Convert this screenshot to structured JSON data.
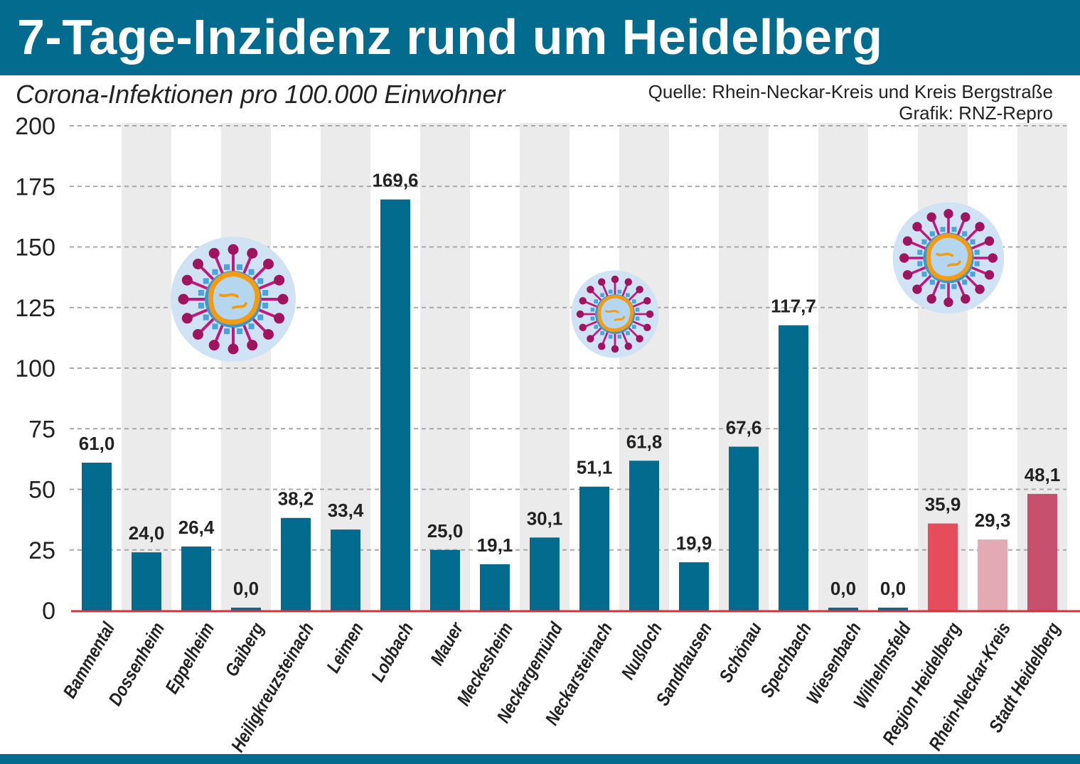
{
  "header": {
    "title": "7-Tage-Inzidenz rund um Heidelberg",
    "subtitle": "Corona-Infektionen pro 100.000 Einwohner",
    "source": "Quelle: Rhein-Neckar-Kreis und Kreis Bergstraße",
    "credit": "Grafik: RNZ-Repro"
  },
  "chart_data": {
    "type": "bar",
    "title": "7-Tage-Inzidenz rund um Heidelberg",
    "ylabel": "Corona-Infektionen pro 100.000 Einwohner",
    "xlabel": "",
    "ylim": [
      0,
      200
    ],
    "yticks": [
      0,
      25,
      50,
      75,
      100,
      125,
      150,
      175,
      200
    ],
    "grid": true,
    "categories": [
      "Bammental",
      "Dossenheim",
      "Eppelheim",
      "Gaiberg",
      "Heiligkreuzsteinach",
      "Leimen",
      "Lobbach",
      "Mauer",
      "Meckesheim",
      "Neckargemünd",
      "Neckarsteinach",
      "Nußloch",
      "Sandhausen",
      "Schönau",
      "Spechbach",
      "Wiesenbach",
      "Wilhelmsfeld",
      "Region Heidelberg",
      "Rhein-Neckar-Kreis",
      "Stadt Heidelberg"
    ],
    "values": [
      61.0,
      24.0,
      26.4,
      0.0,
      38.2,
      33.4,
      169.6,
      25.0,
      19.1,
      30.1,
      51.1,
      61.8,
      19.9,
      67.6,
      117.7,
      0.0,
      0.0,
      35.9,
      29.3,
      48.1
    ],
    "value_labels": [
      "61,0",
      "24,0",
      "26,4",
      "0,0",
      "38,2",
      "33,4",
      "169,6",
      "25,0",
      "19,1",
      "30,1",
      "51,1",
      "61,8",
      "19,9",
      "67,6",
      "117,7",
      "0,0",
      "0,0",
      "35,9",
      "29,3",
      "48,1"
    ],
    "colors": [
      "#036b8e",
      "#036b8e",
      "#036b8e",
      "#036b8e",
      "#036b8e",
      "#036b8e",
      "#036b8e",
      "#036b8e",
      "#036b8e",
      "#036b8e",
      "#036b8e",
      "#036b8e",
      "#036b8e",
      "#036b8e",
      "#036b8e",
      "#036b8e",
      "#036b8e",
      "#e54d5c",
      "#e3aab3",
      "#c8506f"
    ],
    "baseline_color": "#d0343f",
    "decorations": [
      "coronavirus-icon",
      "coronavirus-icon",
      "coronavirus-icon"
    ]
  }
}
